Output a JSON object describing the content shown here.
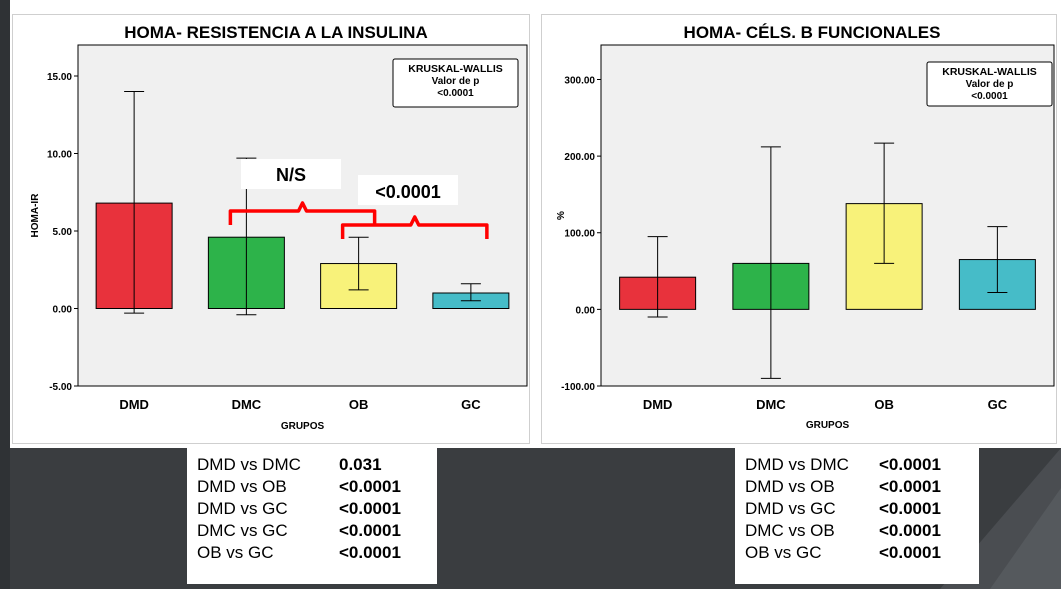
{
  "chart_data": [
    {
      "type": "bar",
      "title": "HOMA- RESISTENCIA A LA INSULINA",
      "xlabel": "GRUPOS",
      "ylabel": "HOMA-IR",
      "categories": [
        "DMD",
        "DMC",
        "OB",
        "GC"
      ],
      "values": [
        6.8,
        4.6,
        2.9,
        1.0
      ],
      "error_low": [
        -0.3,
        -0.4,
        1.2,
        0.5
      ],
      "error_high": [
        14.0,
        9.7,
        4.6,
        1.6
      ],
      "bar_colors": [
        "#e8323c",
        "#2db34a",
        "#f8f27a",
        "#46bcc8"
      ],
      "ylim": [
        -5,
        17
      ],
      "yticks": [
        "15.00",
        "10.00",
        "5.00",
        "0.00",
        "-5.00"
      ],
      "ytick_values": [
        15,
        10,
        5,
        0,
        -5
      ],
      "test_box": {
        "title": "KRUSKAL-WALLIS",
        "line1": "Valor de p",
        "line2": "<0.0001"
      },
      "annotations": [
        {
          "text": "N/S",
          "from": "DMC",
          "to": "OB"
        },
        {
          "text": "<0.0001",
          "from": "OB",
          "to": "GC"
        }
      ],
      "bracket_color": "#ff0000",
      "comparisons": [
        {
          "label": "DMD vs DMC",
          "p": "0.031"
        },
        {
          "label": "DMD vs OB",
          "p": "<0.0001"
        },
        {
          "label": "DMD vs GC",
          "p": "<0.0001"
        },
        {
          "label": "DMC vs GC",
          "p": "<0.0001"
        },
        {
          "label": "OB vs GC",
          "p": "<0.0001"
        }
      ]
    },
    {
      "type": "bar",
      "title": "HOMA- CÉLS. B FUNCIONALES",
      "xlabel": "GRUPOS",
      "ylabel": "%",
      "categories": [
        "DMD",
        "DMC",
        "OB",
        "GC"
      ],
      "values": [
        42,
        60,
        138,
        65
      ],
      "error_low": [
        -10,
        -90,
        60,
        22
      ],
      "error_high": [
        95,
        212,
        217,
        108
      ],
      "bar_colors": [
        "#e8323c",
        "#2db34a",
        "#f8f27a",
        "#46bcc8"
      ],
      "ylim": [
        -100,
        345
      ],
      "yticks": [
        "300.00",
        "200.00",
        "100.00",
        "0.00",
        "-100.00"
      ],
      "ytick_values": [
        300,
        200,
        100,
        0,
        -100
      ],
      "test_box": {
        "title": "KRUSKAL-WALLIS",
        "line1": "Valor de p",
        "line2": "<0.0001"
      },
      "comparisons": [
        {
          "label": "DMD vs DMC",
          "p": "<0.0001"
        },
        {
          "label": "DMD vs OB",
          "p": "<0.0001"
        },
        {
          "label": "DMD vs GC",
          "p": "<0.0001"
        },
        {
          "label": "DMC vs OB",
          "p": "<0.0001"
        },
        {
          "label": "OB vs GC",
          "p": "<0.0001"
        }
      ]
    }
  ]
}
